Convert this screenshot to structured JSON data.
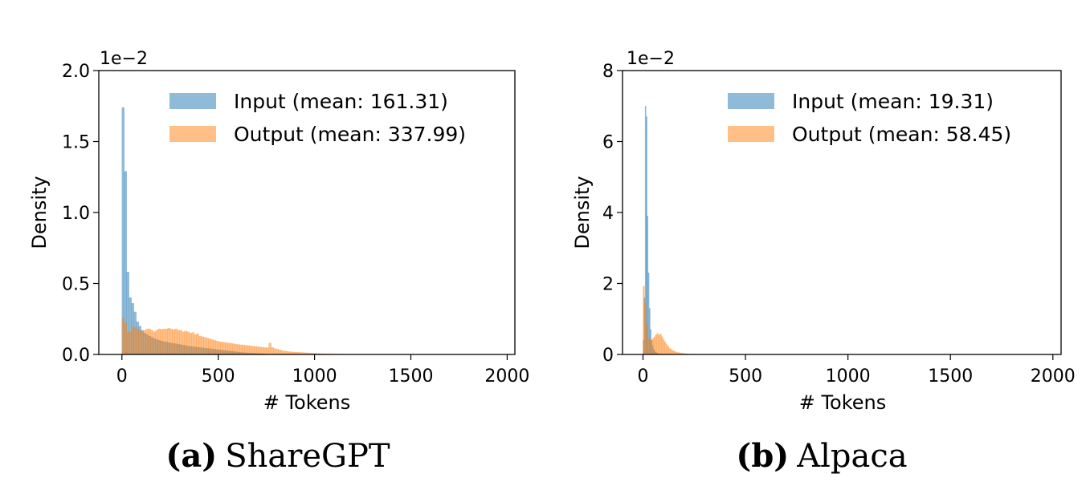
{
  "chart_data": [
    {
      "type": "histogram",
      "xlabel": "# Tokens",
      "ylabel": "Density",
      "exponent_label": "1e−2",
      "xlim": [
        -120,
        2040
      ],
      "ylim": [
        0,
        2.0
      ],
      "xticks": [
        "0",
        "500",
        "1000",
        "1500",
        "2000"
      ],
      "xtick_values": [
        0,
        500,
        1000,
        1500,
        2000
      ],
      "yticks": [
        "0.0",
        "0.5",
        "1.0",
        "1.5",
        "2.0"
      ],
      "ytick_values": [
        0,
        0.5,
        1.0,
        1.5,
        2.0
      ],
      "legend_position": "top-right",
      "caption": {
        "label": "(a)",
        "text": "ShareGPT"
      },
      "series": [
        {
          "name": "Input (mean: 161.31)",
          "color": "#1f77b4",
          "bin_start": 0,
          "bin_width": 12.5,
          "values": [
            1.74,
            1.29,
            0.58,
            0.4,
            0.36,
            0.3,
            0.23,
            0.2,
            0.17,
            0.15,
            0.14,
            0.13,
            0.12,
            0.11,
            0.105,
            0.1,
            0.095,
            0.09,
            0.087,
            0.084,
            0.081,
            0.078,
            0.075,
            0.072,
            0.069,
            0.066,
            0.063,
            0.06,
            0.057,
            0.055,
            0.053,
            0.051,
            0.049,
            0.047,
            0.045,
            0.043,
            0.041,
            0.039,
            0.037,
            0.035,
            0.033,
            0.031,
            0.029,
            0.027,
            0.025,
            0.023,
            0.021,
            0.019,
            0.017,
            0.015,
            0.013,
            0.012,
            0.011,
            0.01,
            0.009,
            0.008,
            0.007,
            0.006,
            0.005,
            0.004
          ]
        },
        {
          "name": "Output (mean: 337.99)",
          "color": "#ff7f0e",
          "bin_start": 0,
          "bin_width": 12.5,
          "values": [
            0.26,
            0.22,
            0.16,
            0.16,
            0.2,
            0.19,
            0.18,
            0.17,
            0.16,
            0.17,
            0.18,
            0.18,
            0.17,
            0.16,
            0.17,
            0.18,
            0.175,
            0.18,
            0.18,
            0.185,
            0.18,
            0.175,
            0.18,
            0.17,
            0.17,
            0.16,
            0.165,
            0.16,
            0.15,
            0.155,
            0.14,
            0.145,
            0.13,
            0.125,
            0.12,
            0.115,
            0.11,
            0.105,
            0.1,
            0.095,
            0.09,
            0.088,
            0.085,
            0.082,
            0.08,
            0.078,
            0.075,
            0.072,
            0.07,
            0.068,
            0.066,
            0.064,
            0.062,
            0.06,
            0.058,
            0.056,
            0.054,
            0.052,
            0.05,
            0.048,
            0.047,
            0.08,
            0.05,
            0.042,
            0.038,
            0.032,
            0.028,
            0.024,
            0.022,
            0.02,
            0.018,
            0.017,
            0.016,
            0.015,
            0.014,
            0.013,
            0.012,
            0.011,
            0.01,
            0.009,
            0.008,
            0.007,
            0.006,
            0.005,
            0.005,
            0.004,
            0.004,
            0.003,
            0.003,
            0.002,
            0.002,
            0.002,
            0.002,
            0.001,
            0.001,
            0.001,
            0.001,
            0.001,
            0.001,
            0.001
          ]
        }
      ]
    },
    {
      "type": "histogram",
      "xlabel": "# Tokens",
      "ylabel": "Density",
      "exponent_label": "1e−2",
      "xlim": [
        -100,
        2040
      ],
      "ylim": [
        0,
        8
      ],
      "xticks": [
        "0",
        "500",
        "1000",
        "1500",
        "2000"
      ],
      "xtick_values": [
        0,
        500,
        1000,
        1500,
        2000
      ],
      "yticks": [
        "0",
        "2",
        "4",
        "6",
        "8"
      ],
      "ytick_values": [
        0,
        2,
        4,
        6,
        8
      ],
      "legend_position": "top-right",
      "caption": {
        "label": "(b)",
        "text": "Alpaca"
      },
      "series": [
        {
          "name": "Input (mean: 19.31)",
          "color": "#1f77b4",
          "bin_start": 0,
          "bin_width": 5,
          "values": [
            0.4,
            1.6,
            7.0,
            6.7,
            3.9,
            2.3,
            1.3,
            0.7,
            0.4,
            0.25,
            0.15,
            0.1,
            0.06,
            0.04,
            0.03,
            0.02,
            0.01,
            0.01
          ]
        },
        {
          "name": "Output (mean: 58.45)",
          "color": "#ff7f0e",
          "bin_start": 0,
          "bin_width": 7.5,
          "values": [
            1.92,
            1.45,
            0.85,
            0.45,
            0.42,
            0.4,
            0.45,
            0.5,
            0.55,
            0.6,
            0.55,
            0.58,
            0.5,
            0.42,
            0.35,
            0.28,
            0.22,
            0.17,
            0.14,
            0.11,
            0.09,
            0.07,
            0.06,
            0.05,
            0.04,
            0.035,
            0.03,
            0.025,
            0.02,
            0.015
          ]
        }
      ]
    }
  ]
}
